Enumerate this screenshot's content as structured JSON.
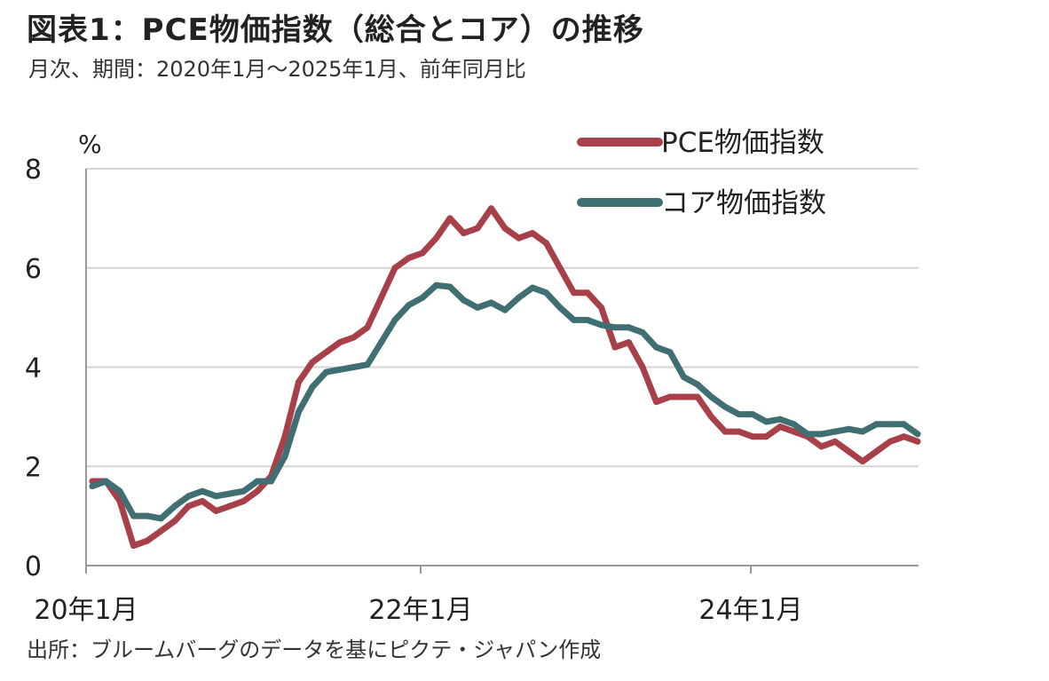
{
  "header": {
    "title": "図表1：PCE物価指数（総合とコア）の推移",
    "subtitle": "月次、期間：2020年1月～2025年1月、前年同月比"
  },
  "footer": {
    "source": "出所：ブルームバーグのデータを基にピクテ・ジャパン作成"
  },
  "chart_data": {
    "type": "line",
    "ylabel": "%",
    "ylim": [
      0,
      8
    ],
    "yticks": [
      0,
      2,
      4,
      6,
      8
    ],
    "x_tick_labels": [
      "20年1月",
      "22年1月",
      "24年1月"
    ],
    "x_tick_index": [
      0,
      24,
      48
    ],
    "x_start": "2020-01",
    "x_end": "2025-01",
    "grid": true,
    "legend_position": "top-right",
    "series": [
      {
        "name": "PCE物価指数",
        "color": "#a8404a",
        "values": [
          1.7,
          1.7,
          1.3,
          0.4,
          0.5,
          0.7,
          0.9,
          1.2,
          1.3,
          1.1,
          1.2,
          1.3,
          1.5,
          1.8,
          2.6,
          3.7,
          4.1,
          4.3,
          4.5,
          4.6,
          4.8,
          5.4,
          6.0,
          6.2,
          6.3,
          6.6,
          7.0,
          6.7,
          6.8,
          7.2,
          6.8,
          6.6,
          6.7,
          6.5,
          6.0,
          5.5,
          5.5,
          5.2,
          4.4,
          4.5,
          4.0,
          3.3,
          3.4,
          3.4,
          3.4,
          3.0,
          2.7,
          2.7,
          2.6,
          2.6,
          2.8,
          2.7,
          2.6,
          2.4,
          2.5,
          2.3,
          2.1,
          2.3,
          2.5,
          2.6,
          2.5
        ]
      },
      {
        "name": "コア物価指数",
        "color": "#3f6f73",
        "values": [
          1.6,
          1.7,
          1.5,
          1.0,
          1.0,
          0.95,
          1.2,
          1.4,
          1.5,
          1.4,
          1.45,
          1.5,
          1.7,
          1.7,
          2.2,
          3.1,
          3.6,
          3.9,
          3.95,
          4.0,
          4.05,
          4.5,
          4.95,
          5.25,
          5.4,
          5.65,
          5.62,
          5.35,
          5.2,
          5.3,
          5.15,
          5.4,
          5.6,
          5.5,
          5.2,
          4.95,
          4.95,
          4.85,
          4.8,
          4.8,
          4.7,
          4.4,
          4.3,
          3.8,
          3.65,
          3.4,
          3.2,
          3.05,
          3.05,
          2.9,
          2.95,
          2.85,
          2.65,
          2.65,
          2.7,
          2.75,
          2.7,
          2.85,
          2.85,
          2.85,
          2.65
        ]
      }
    ]
  }
}
